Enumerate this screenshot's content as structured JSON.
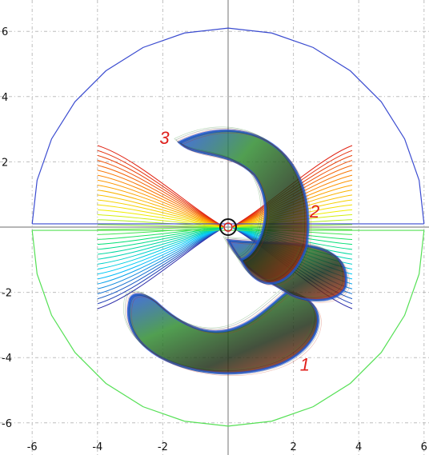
{
  "chart_data": {
    "type": "scatter",
    "title": "",
    "xlabel": "",
    "ylabel": "",
    "xlim": [
      -6.2,
      6.2
    ],
    "ylim": [
      -6.5,
      6.3
    ],
    "grid": true,
    "x_ticks": [
      -6,
      -4,
      -2,
      2,
      4,
      6
    ],
    "x_tick_labels": [
      "-6",
      "-4",
      "-2",
      "2",
      "4",
      "6"
    ],
    "y_ticks": [
      6,
      4,
      2,
      -2,
      -4,
      -6
    ],
    "y_tick_labels": [
      "6",
      "4",
      "2",
      "-2",
      "-4",
      "-6"
    ],
    "boundary_upper": {
      "color": "#3a4bd0",
      "radius": 6,
      "angle_range_deg": [
        0,
        180
      ],
      "base_y": 0.1
    },
    "boundary_lower": {
      "color": "#55e055",
      "radius": 6,
      "angle_range_deg": [
        180,
        360
      ],
      "base_y": -0.1
    },
    "field_lines": {
      "count": 34,
      "x_extent": [
        -4,
        4
      ],
      "y_extent": [
        -2.5,
        2.5
      ],
      "color_scale": [
        "#2a2aa8",
        "#00c8ff",
        "#00e070",
        "#f0f000",
        "#ff9000",
        "#e02010"
      ]
    },
    "lobes": [
      {
        "id": "lobe-1",
        "label": "1",
        "label_pos": [
          2.2,
          -4.4
        ],
        "colors": [
          "#1d4ee0",
          "#2b8a2b",
          "#1a2a12",
          "#c22a10"
        ]
      },
      {
        "id": "lobe-2",
        "label": "2",
        "label_pos": [
          2.5,
          0.3
        ],
        "colors": [
          "#1d4ee0",
          "#2b8a2b",
          "#1a2a12",
          "#c22a10"
        ]
      },
      {
        "id": "lobe-3",
        "label": "3",
        "label_pos": [
          -2.1,
          2.55
        ],
        "colors": [
          "#1d4ee0",
          "#2b8a2b",
          "#1a2a12",
          "#c22a10"
        ]
      }
    ],
    "annotations": [
      "1",
      "2",
      "3"
    ]
  }
}
